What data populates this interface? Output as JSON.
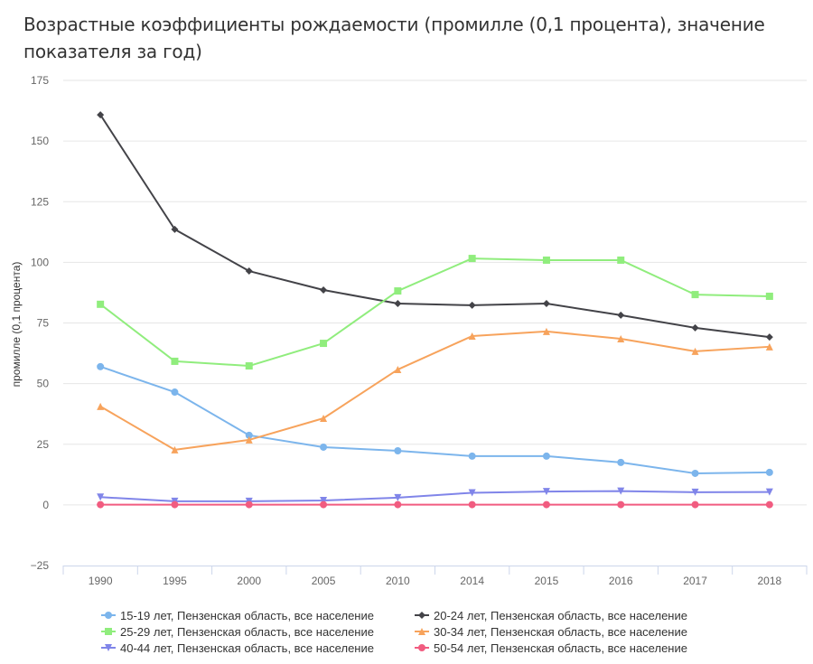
{
  "title": "Возрастные коэффициенты рождаемости (промилле (0,1 процента), значение показателя за год)",
  "chart_data": {
    "type": "line",
    "title": "Возрастные коэффициенты рождаемости (промилле (0,1 процента), значение показателя за год)",
    "xlabel": "",
    "ylabel": "промилле (0,1 процента)",
    "ylim": [
      -25,
      175
    ],
    "yticks": [
      -25,
      0,
      25,
      50,
      75,
      100,
      125,
      150,
      175
    ],
    "grid": true,
    "legend_position": "bottom",
    "categories": [
      "1990",
      "1995",
      "2000",
      "2005",
      "2010",
      "2014",
      "2015",
      "2016",
      "2017",
      "2018"
    ],
    "series": [
      {
        "name": "15-19 лет, Пензенская область, все население",
        "color": "#7cb5ec",
        "marker": "circle",
        "values": [
          57.0,
          46.5,
          28.7,
          23.8,
          22.3,
          20.1,
          20.1,
          17.5,
          13.0,
          13.4
        ]
      },
      {
        "name": "20-24 лет, Пензенская область, все население",
        "color": "#434348",
        "marker": "diamond",
        "values": [
          160.8,
          113.6,
          96.4,
          88.6,
          83.0,
          82.3,
          83.0,
          78.2,
          73.0,
          69.2
        ]
      },
      {
        "name": "25-29 лет, Пензенская область, все население",
        "color": "#90ed7d",
        "marker": "square",
        "values": [
          82.7,
          59.2,
          57.3,
          66.6,
          88.2,
          101.6,
          100.9,
          100.9,
          86.7,
          86.0
        ]
      },
      {
        "name": "30-34 лет, Пензенская область, все население",
        "color": "#f7a35c",
        "marker": "triangle",
        "values": [
          40.6,
          22.7,
          26.8,
          35.7,
          55.8,
          69.6,
          71.5,
          68.5,
          63.3,
          65.2
        ]
      },
      {
        "name": "40-44 лет, Пензенская область, все население",
        "color": "#8085e9",
        "marker": "triangle-down",
        "values": [
          3.2,
          1.5,
          1.5,
          1.8,
          3.0,
          5.0,
          5.5,
          5.7,
          5.2,
          5.3
        ]
      },
      {
        "name": "50-54 лет, Пензенская область, все население",
        "color": "#f15c80",
        "marker": "circle",
        "values": [
          0.1,
          0.1,
          0.1,
          0.1,
          0.1,
          0.1,
          0.1,
          0.1,
          0.1,
          0.1
        ]
      }
    ]
  }
}
